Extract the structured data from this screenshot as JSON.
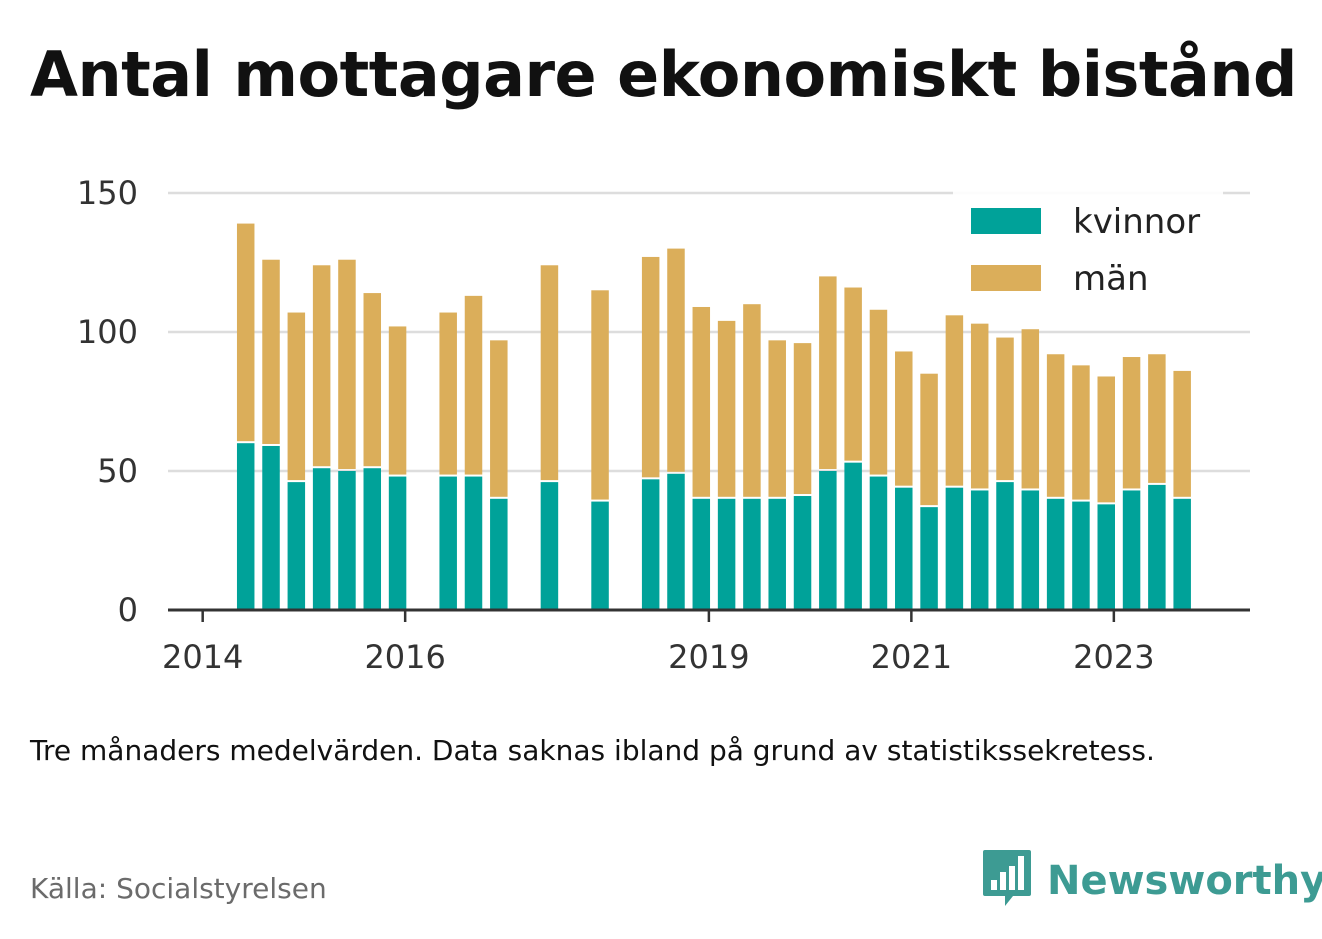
{
  "title": "Antal mottagare ekonomiskt bistånd",
  "note": "Tre månaders medelvärden. Data saknas ibland på grund av statistikssekretess.",
  "source": "Källa: Socialstyrelsen",
  "brand": {
    "name": "Newsworthy",
    "icon": "bar-chart-speech-bubble-icon",
    "color": "#3d9b93"
  },
  "colors": {
    "kvinnor": "#00a299",
    "män": "#dbae5a",
    "grid": "#dddddd",
    "axis": "#333333"
  },
  "chart_data": {
    "type": "bar",
    "stacked": true,
    "ylim": [
      0,
      150
    ],
    "yticks": [
      0,
      50,
      100,
      150
    ],
    "xticks": [
      "2014",
      "2016",
      "2019",
      "2021",
      "2023"
    ],
    "grid": true,
    "legend_position": "top-right",
    "categories": [
      "2014-Q2",
      "2014-Q3",
      "2014-Q4",
      "2015-Q1",
      "2015-Q2",
      "2015-Q3",
      "2015-Q4",
      "2016-Q1",
      "2016-Q2",
      "2016-Q3",
      "2016-Q4",
      "2017-Q1",
      "2017-Q2",
      "2017-Q3",
      "2017-Q4",
      "2018-Q1",
      "2018-Q2",
      "2018-Q3",
      "2018-Q4",
      "2019-Q1",
      "2019-Q2",
      "2019-Q3",
      "2019-Q4",
      "2020-Q1",
      "2020-Q2",
      "2020-Q3",
      "2020-Q4",
      "2021-Q1",
      "2021-Q2",
      "2021-Q3",
      "2021-Q4",
      "2022-Q1",
      "2022-Q2",
      "2022-Q3",
      "2022-Q4",
      "2023-Q1",
      "2023-Q2",
      "2023-Q3"
    ],
    "series": [
      {
        "name": "kvinnor",
        "values": [
          60,
          59,
          46,
          51,
          50,
          51,
          48,
          null,
          48,
          48,
          40,
          null,
          46,
          null,
          39,
          null,
          47,
          49,
          40,
          40,
          40,
          40,
          41,
          50,
          53,
          48,
          44,
          37,
          44,
          43,
          46,
          43,
          40,
          39,
          38,
          43,
          45,
          40
        ]
      },
      {
        "name": "män",
        "values": [
          79,
          67,
          61,
          73,
          76,
          63,
          54,
          null,
          59,
          65,
          57,
          null,
          78,
          null,
          76,
          null,
          80,
          81,
          69,
          64,
          70,
          57,
          55,
          70,
          63,
          60,
          49,
          48,
          62,
          60,
          52,
          58,
          52,
          49,
          46,
          48,
          47,
          46
        ]
      }
    ]
  }
}
